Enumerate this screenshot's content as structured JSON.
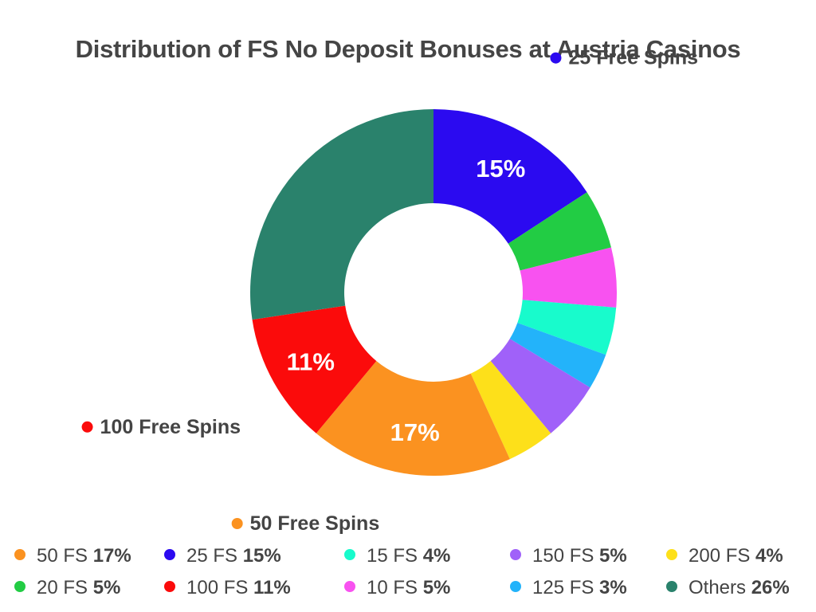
{
  "chart_data": {
    "type": "pie",
    "variant": "donut",
    "title": "Distribution of FS No Deposit Bonuses at Austria Casinos",
    "unit": "%",
    "slices": [
      {
        "label": "25 FS",
        "value": 15,
        "color": "#2b0af0",
        "percent_label": "15%",
        "callout": "25 Free Spins"
      },
      {
        "label": "20 FS",
        "value": 5,
        "color": "#22cc44"
      },
      {
        "label": "10 FS",
        "value": 5,
        "color": "#f852f0"
      },
      {
        "label": "15 FS",
        "value": 4,
        "color": "#18fbcc"
      },
      {
        "label": "125 FS",
        "value": 3,
        "color": "#23b3fa"
      },
      {
        "label": "150 FS",
        "value": 5,
        "color": "#a061f9"
      },
      {
        "label": "200 FS",
        "value": 4,
        "color": "#fde01a"
      },
      {
        "label": "50 FS",
        "value": 17,
        "color": "#fb9220",
        "percent_label": "17%",
        "callout": "50 Free Spins"
      },
      {
        "label": "100 FS",
        "value": 11,
        "color": "#fb0b0b",
        "percent_label": "11%",
        "callout": "100 Free Spins"
      },
      {
        "label": "Others",
        "value": 26,
        "color": "#2a826c"
      }
    ],
    "legend": [
      {
        "name": "50 FS",
        "pct": "17%",
        "color": "#fb9220"
      },
      {
        "name": "25 FS",
        "pct": "15%",
        "color": "#2b0af0"
      },
      {
        "name": "15 FS",
        "pct": "4%",
        "color": "#18fbcc"
      },
      {
        "name": "150 FS",
        "pct": "5%",
        "color": "#a061f9"
      },
      {
        "name": "200 FS",
        "pct": "4%",
        "color": "#fde01a"
      },
      {
        "name": "20 FS",
        "pct": "5%",
        "color": "#22cc44"
      },
      {
        "name": "100 FS",
        "pct": "11%",
        "color": "#fb0b0b"
      },
      {
        "name": "10 FS",
        "pct": "5%",
        "color": "#f852f0"
      },
      {
        "name": "125 FS",
        "pct": "3%",
        "color": "#23b3fa"
      },
      {
        "name": "Others",
        "pct": "26%",
        "color": "#2a826c"
      }
    ],
    "legend_placement": "bottom"
  }
}
